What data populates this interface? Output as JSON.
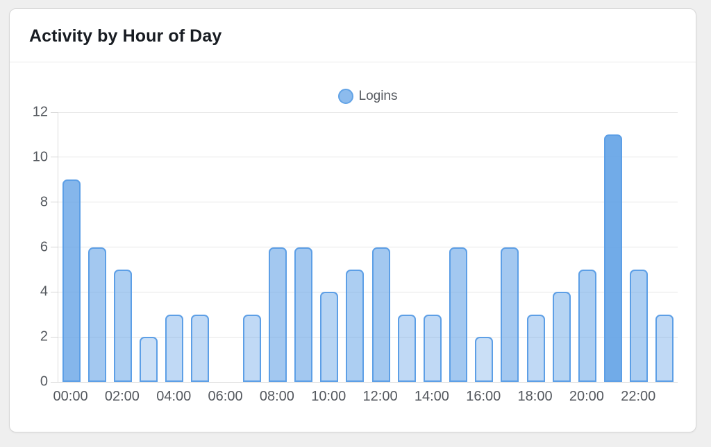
{
  "card": {
    "title": "Activity by Hour of Day"
  },
  "chart_data": {
    "type": "bar",
    "title": "Activity by Hour of Day",
    "categories": [
      "00:00",
      "01:00",
      "02:00",
      "03:00",
      "04:00",
      "05:00",
      "06:00",
      "07:00",
      "08:00",
      "09:00",
      "10:00",
      "11:00",
      "12:00",
      "13:00",
      "14:00",
      "15:00",
      "16:00",
      "17:00",
      "18:00",
      "19:00",
      "20:00",
      "21:00",
      "22:00",
      "23:00"
    ],
    "series": [
      {
        "name": "Logins",
        "values": [
          9,
          6,
          5,
          2,
          3,
          3,
          0,
          3,
          6,
          6,
          4,
          5,
          6,
          3,
          3,
          6,
          2,
          6,
          3,
          4,
          5,
          11,
          5,
          3
        ]
      }
    ],
    "xlabel": "",
    "ylabel": "",
    "ylim": [
      0,
      12
    ],
    "y_ticks": [
      0,
      2,
      4,
      6,
      8,
      10,
      12
    ],
    "x_tick_labels": [
      "00:00",
      "02:00",
      "04:00",
      "06:00",
      "08:00",
      "10:00",
      "12:00",
      "14:00",
      "16:00",
      "18:00",
      "20:00",
      "22:00"
    ],
    "x_label_every": 2,
    "grid": true,
    "legend": {
      "label": "Logins",
      "position": "top-center"
    },
    "colors": {
      "bar_base": "#64a3e6",
      "bar_border": "#5d9fe6",
      "legend_fill": "#8cbbed",
      "legend_border": "#62a3e6",
      "opacity_base": 0.22,
      "opacity_per_unit": 0.063,
      "opacity_max": 0.97
    }
  }
}
